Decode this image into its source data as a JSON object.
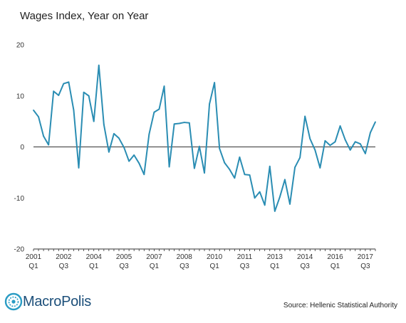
{
  "header": {
    "title": "Wages Index, Year on Year"
  },
  "footer": {
    "logo_text": "MacroPolis",
    "source": "Source: Hellenic Statistical Authority"
  },
  "colors": {
    "line": "#2a8db3",
    "zero_line": "#333333",
    "logo": "#1c4f7a"
  },
  "chart_data": {
    "type": "line",
    "title": "Wages Index, Year on Year",
    "xlabel": "",
    "ylabel": "",
    "ylim": [
      -20,
      20
    ],
    "yticks": [
      -20,
      -10,
      0,
      10,
      20
    ],
    "grid": false,
    "x_start": "2001 Q1",
    "x_tick_labels": [
      {
        "index": 0,
        "year": "2001",
        "quarter": "Q1"
      },
      {
        "index": 6,
        "year": "2002",
        "quarter": "Q3"
      },
      {
        "index": 12,
        "year": "2004",
        "quarter": "Q1"
      },
      {
        "index": 18,
        "year": "2005",
        "quarter": "Q3"
      },
      {
        "index": 24,
        "year": "2007",
        "quarter": "Q1"
      },
      {
        "index": 30,
        "year": "2008",
        "quarter": "Q3"
      },
      {
        "index": 36,
        "year": "2010",
        "quarter": "Q1"
      },
      {
        "index": 42,
        "year": "2011",
        "quarter": "Q3"
      },
      {
        "index": 48,
        "year": "2013",
        "quarter": "Q1"
      },
      {
        "index": 54,
        "year": "2014",
        "quarter": "Q3"
      },
      {
        "index": 60,
        "year": "2016",
        "quarter": "Q1"
      },
      {
        "index": 66,
        "year": "2017",
        "quarter": "Q3"
      }
    ],
    "series": [
      {
        "values": [
          7.2,
          5.9,
          2.1,
          0.4,
          10.9,
          10.1,
          12.4,
          12.7,
          7.2,
          -4.1,
          10.7,
          10.0,
          5.0,
          16.0,
          4.4,
          -1.0,
          2.6,
          1.7,
          -0.1,
          -2.8,
          -1.6,
          -3.2,
          -5.4,
          2.5,
          6.8,
          7.4,
          11.9,
          -3.9,
          4.5,
          4.6,
          4.8,
          4.7,
          -4.2,
          0.1,
          -5.1,
          8.4,
          12.6,
          -0.3,
          -3.1,
          -4.4,
          -6.1,
          -2.0,
          -5.4,
          -5.5,
          -10.0,
          -8.8,
          -11.4,
          -3.8,
          -12.6,
          -9.8,
          -6.4,
          -11.2,
          -4.0,
          -2.1,
          6.0,
          1.6,
          -0.6,
          -4.1,
          1.2,
          0.3,
          1.0,
          4.1,
          1.4,
          -0.6,
          1.0,
          0.6,
          -1.3,
          2.8,
          4.9
        ]
      }
    ]
  }
}
